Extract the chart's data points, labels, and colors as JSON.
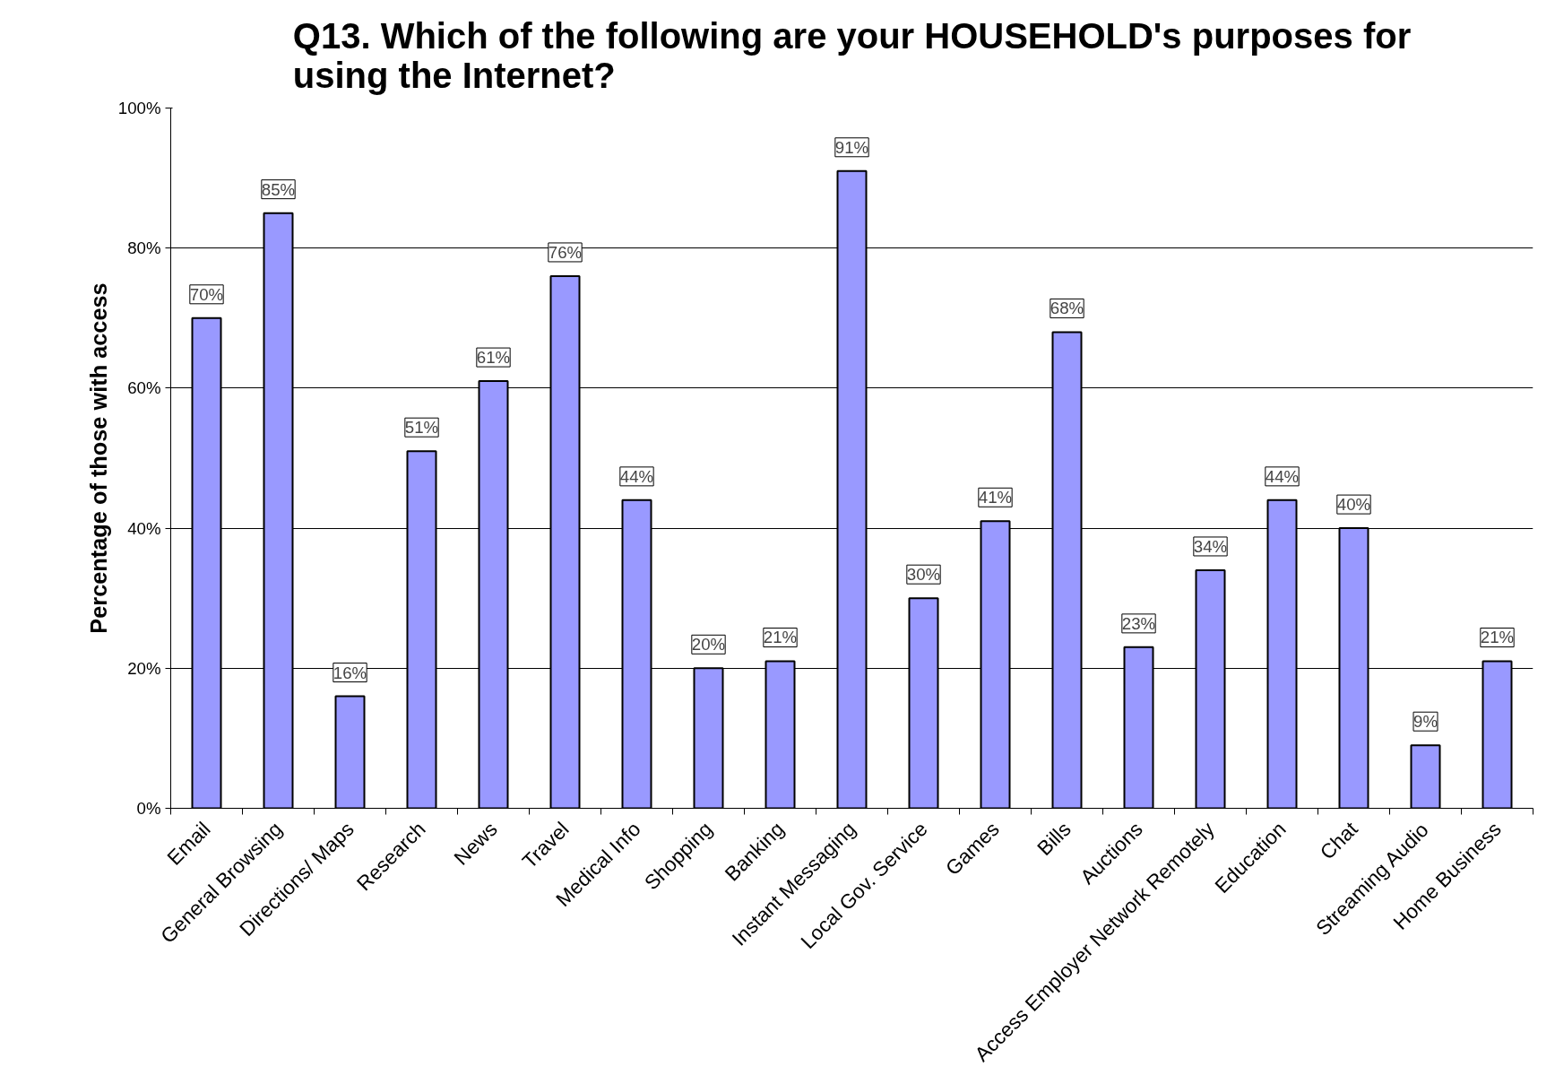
{
  "chart_data": {
    "type": "bar",
    "title": "Q13. Which of the following are your HOUSEHOLD's purposes for\nusing the Internet?",
    "ylabel": "Percentage of those with access",
    "categories": [
      "Email",
      "General Browsing",
      "Directions/ Maps",
      "Research",
      "News",
      "Travel",
      "Medical Info",
      "Shopping",
      "Banking",
      "Instant Messaging",
      "Local Gov. Service",
      "Games",
      "Bills",
      "Auctions",
      "Access Employer Network Remotely",
      "Education",
      "Chat",
      "Streaming Audio",
      "Home Business"
    ],
    "values": [
      70,
      85,
      16,
      51,
      61,
      76,
      44,
      20,
      21,
      91,
      30,
      41,
      68,
      23,
      34,
      44,
      40,
      9,
      21
    ],
    "value_labels": [
      "70%",
      "85%",
      "16%",
      "51%",
      "61%",
      "76%",
      "44%",
      "20%",
      "21%",
      "91%",
      "30%",
      "41%",
      "68%",
      "23%",
      "34%",
      "44%",
      "40%",
      "9%",
      "21%"
    ],
    "color": "#9999ff",
    "ylim": [
      0,
      100
    ],
    "yticks": [
      {
        "value": 0,
        "label": "0%"
      },
      {
        "value": 20,
        "label": "20%"
      },
      {
        "value": 40,
        "label": "40%"
      },
      {
        "value": 60,
        "label": "60%"
      },
      {
        "value": 80,
        "label": "80%"
      },
      {
        "value": 100,
        "label": "100%"
      }
    ],
    "grid": "y"
  }
}
